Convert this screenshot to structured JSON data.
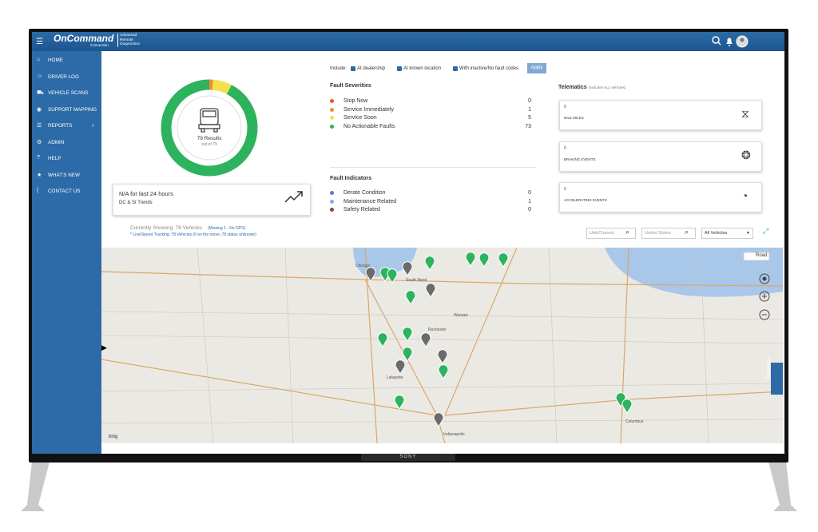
{
  "header": {
    "logo": "OnCommand",
    "logo_sub": "Connection",
    "product": "Advanced Remote Diagnostics"
  },
  "nav": [
    "HOME",
    "DRIVER LOG",
    "VEHICLE SCANS",
    "SUPPORT MAPPING",
    "REPORTS",
    "ADMIN",
    "HELP",
    "WHAT'S NEW",
    "CONTACT US"
  ],
  "summary": {
    "results": "79 Results",
    "out_of": "out of 79"
  },
  "trend_card": {
    "title": "N/A for last 24 hours",
    "subtitle": "DC & SI Trends"
  },
  "filters": {
    "include": "Include:",
    "options": [
      "At dealership",
      "At known location",
      "With inactive/No fault codes"
    ],
    "apply": "Apply"
  },
  "fault_severities": {
    "title": "Fault Severities",
    "items": [
      {
        "label": "Stop Now",
        "count": 0,
        "color": "#e4572e"
      },
      {
        "label": "Service Immediately",
        "count": 1,
        "color": "#f28c28"
      },
      {
        "label": "Service Soon",
        "count": 5,
        "color": "#f4e04d"
      },
      {
        "label": "No Actionable Faults",
        "count": 73,
        "color": "#2db35d"
      }
    ]
  },
  "fault_indicators": {
    "title": "Fault Indicators",
    "items": [
      {
        "label": "Derate Condition",
        "count": 0,
        "color": "#6b6fc9"
      },
      {
        "label": "Maintenance Related",
        "count": 1,
        "color": "#7fb2e5"
      },
      {
        "label": "Safety Related",
        "count": 0,
        "color": "#7a4a3a"
      }
    ]
  },
  "telematics": {
    "title": "Telematics",
    "note": "(includes ALL Vehicles)",
    "cards": [
      {
        "value": 0,
        "label": "IDLE MILES"
      },
      {
        "value": 0,
        "label": "BRAKING EVENTS"
      },
      {
        "value": 0,
        "label": "ACCELERATING EVENTS"
      }
    ]
  },
  "status": {
    "showing": "Currently Showing: 78 Vehicles",
    "missing": "(Missing 1 - No GPS)",
    "tracking": "* Live/Speed Tracking: 78 Vehicles (0 on the move; 78 status unknown)"
  },
  "search": {
    "unit": "Unit/Chassis",
    "country": "United States",
    "vehicles": "All Vehicles"
  },
  "map": {
    "road": "Road",
    "feedback": "Feedback",
    "bing": "bing",
    "cities": [
      "Chicago",
      "South Bend",
      "Lafayette",
      "Indianapolis",
      "Columbus",
      "Rochester",
      "Warsaw"
    ]
  },
  "tv": {
    "brand": "SONY"
  }
}
